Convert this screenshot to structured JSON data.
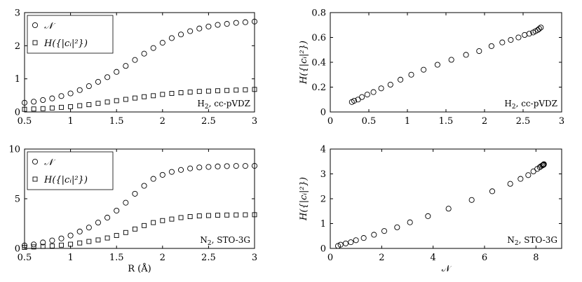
{
  "chart_data": [
    {
      "type": "scatter",
      "xlabel": "",
      "ylabel": "",
      "xlim": [
        0.5,
        3
      ],
      "ylim": [
        0,
        3
      ],
      "xticks": [
        0.5,
        1,
        1.5,
        2,
        2.5,
        3
      ],
      "yticks": [
        0,
        1,
        2,
        3
      ],
      "xticklabels": [
        "0.5",
        "1",
        "1.5",
        "2",
        "2.5",
        "3"
      ],
      "yticklabels": [
        "0",
        "1",
        "2",
        "3"
      ],
      "legend": "top-left",
      "annotation_main": "H",
      "annotation_sub": "2",
      "annotation_rest": ", cc-pVDZ",
      "series": [
        {
          "name": "𝒩",
          "marker": "circle",
          "x": [
            0.5,
            0.6,
            0.7,
            0.8,
            0.9,
            1.0,
            1.1,
            1.2,
            1.3,
            1.4,
            1.5,
            1.6,
            1.7,
            1.8,
            1.9,
            2.0,
            2.1,
            2.2,
            2.3,
            2.4,
            2.5,
            2.6,
            2.7,
            2.8,
            2.9,
            3.0
          ],
          "y": [
            0.28,
            0.31,
            0.36,
            0.41,
            0.48,
            0.56,
            0.66,
            0.78,
            0.91,
            1.05,
            1.21,
            1.39,
            1.57,
            1.76,
            1.93,
            2.09,
            2.23,
            2.34,
            2.44,
            2.52,
            2.58,
            2.63,
            2.66,
            2.69,
            2.71,
            2.73
          ]
        },
        {
          "name": "H({|cᵢ|²})",
          "marker": "square",
          "x": [
            0.5,
            0.6,
            0.7,
            0.8,
            0.9,
            1.0,
            1.1,
            1.2,
            1.3,
            1.4,
            1.5,
            1.6,
            1.7,
            1.8,
            1.9,
            2.0,
            2.1,
            2.2,
            2.3,
            2.4,
            2.5,
            2.6,
            2.7,
            2.8,
            2.9,
            3.0
          ],
          "y": [
            0.08,
            0.09,
            0.1,
            0.12,
            0.14,
            0.16,
            0.19,
            0.22,
            0.26,
            0.3,
            0.34,
            0.38,
            0.42,
            0.46,
            0.49,
            0.53,
            0.56,
            0.58,
            0.6,
            0.62,
            0.63,
            0.64,
            0.65,
            0.66,
            0.67,
            0.68
          ]
        }
      ]
    },
    {
      "type": "scatter",
      "xlabel": "",
      "ylabel": "H({|cᵢ|²})",
      "xlim": [
        0,
        3
      ],
      "ylim": [
        0,
        0.8
      ],
      "xticks": [
        0,
        0.5,
        1,
        1.5,
        2,
        2.5,
        3
      ],
      "yticks": [
        0,
        0.2,
        0.4,
        0.6,
        0.8
      ],
      "xticklabels": [
        "0",
        "0.5",
        "1",
        "1.5",
        "2",
        "2.5",
        "3"
      ],
      "yticklabels": [
        "0",
        "0.2",
        "0.4",
        "0.6",
        "0.8"
      ],
      "annotation_main": "H",
      "annotation_sub": "2",
      "annotation_rest": ", cc-pVDZ",
      "series": [
        {
          "name": "",
          "marker": "circle",
          "x": [
            0.28,
            0.31,
            0.36,
            0.41,
            0.48,
            0.56,
            0.66,
            0.78,
            0.91,
            1.05,
            1.21,
            1.39,
            1.57,
            1.76,
            1.93,
            2.09,
            2.23,
            2.34,
            2.44,
            2.52,
            2.58,
            2.63,
            2.66,
            2.69,
            2.71,
            2.73
          ],
          "y": [
            0.08,
            0.09,
            0.1,
            0.12,
            0.14,
            0.16,
            0.19,
            0.22,
            0.26,
            0.3,
            0.34,
            0.38,
            0.42,
            0.46,
            0.49,
            0.53,
            0.56,
            0.58,
            0.6,
            0.62,
            0.63,
            0.64,
            0.65,
            0.66,
            0.67,
            0.68
          ]
        }
      ]
    },
    {
      "type": "scatter",
      "xlabel": "R (Å)",
      "ylabel": "",
      "xlim": [
        0.5,
        3
      ],
      "ylim": [
        0,
        10
      ],
      "xticks": [
        0.5,
        1,
        1.5,
        2,
        2.5,
        3
      ],
      "yticks": [
        0,
        5,
        10
      ],
      "xticklabels": [
        "0.5",
        "1",
        "1.5",
        "2",
        "2.5",
        "3"
      ],
      "yticklabels": [
        "0",
        "5",
        "10"
      ],
      "legend": "top-left",
      "annotation_main": "N",
      "annotation_sub": "2",
      "annotation_rest": ", STO-3G",
      "series": [
        {
          "name": "𝒩",
          "marker": "circle",
          "x": [
            0.5,
            0.6,
            0.7,
            0.8,
            0.9,
            1.0,
            1.1,
            1.2,
            1.3,
            1.4,
            1.5,
            1.6,
            1.7,
            1.8,
            1.9,
            2.0,
            2.1,
            2.2,
            2.3,
            2.4,
            2.5,
            2.6,
            2.7,
            2.8,
            2.9,
            3.0
          ],
          "y": [
            0.3,
            0.4,
            0.6,
            0.8,
            1.0,
            1.3,
            1.7,
            2.1,
            2.6,
            3.1,
            3.8,
            4.6,
            5.5,
            6.3,
            7.0,
            7.4,
            7.7,
            7.9,
            8.05,
            8.15,
            8.2,
            8.25,
            8.28,
            8.3,
            8.3,
            8.31
          ]
        },
        {
          "name": "H({|cᵢ|²})",
          "marker": "square",
          "x": [
            0.5,
            0.6,
            0.7,
            0.8,
            0.9,
            1.0,
            1.1,
            1.2,
            1.3,
            1.4,
            1.5,
            1.6,
            1.7,
            1.8,
            1.9,
            2.0,
            2.1,
            2.2,
            2.3,
            2.4,
            2.5,
            2.6,
            2.7,
            2.8,
            2.9,
            3.0
          ],
          "y": [
            0.1,
            0.15,
            0.2,
            0.25,
            0.33,
            0.42,
            0.55,
            0.7,
            0.85,
            1.05,
            1.3,
            1.6,
            1.95,
            2.3,
            2.6,
            2.8,
            2.95,
            3.1,
            3.2,
            3.27,
            3.31,
            3.34,
            3.36,
            3.37,
            3.38,
            3.39
          ]
        }
      ]
    },
    {
      "type": "scatter",
      "xlabel": "𝒩",
      "ylabel": "H({|cᵢ|²})",
      "xlim": [
        0,
        9
      ],
      "ylim": [
        0,
        4
      ],
      "xticks": [
        0,
        2,
        4,
        6,
        8
      ],
      "yticks": [
        0,
        1,
        2,
        3,
        4
      ],
      "xticklabels": [
        "0",
        "2",
        "4",
        "6",
        "8"
      ],
      "yticklabels": [
        "0",
        "1",
        "2",
        "3",
        "4"
      ],
      "annotation_main": "N",
      "annotation_sub": "2",
      "annotation_rest": ", STO-3G",
      "series": [
        {
          "name": "",
          "marker": "circle",
          "x": [
            0.3,
            0.4,
            0.6,
            0.8,
            1.0,
            1.3,
            1.7,
            2.1,
            2.6,
            3.1,
            3.8,
            4.6,
            5.5,
            6.3,
            7.0,
            7.4,
            7.7,
            7.9,
            8.05,
            8.15,
            8.2,
            8.25,
            8.28,
            8.3,
            8.3,
            8.31
          ],
          "y": [
            0.1,
            0.15,
            0.2,
            0.25,
            0.33,
            0.42,
            0.55,
            0.7,
            0.85,
            1.05,
            1.3,
            1.6,
            1.95,
            2.3,
            2.6,
            2.8,
            2.95,
            3.1,
            3.2,
            3.27,
            3.31,
            3.34,
            3.36,
            3.37,
            3.38,
            3.39
          ]
        }
      ]
    }
  ]
}
